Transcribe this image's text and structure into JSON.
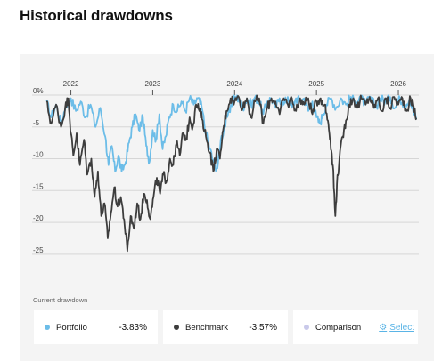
{
  "page": {
    "title": "Historical drawdowns"
  },
  "colors": {
    "portfolio": "#6cbde8",
    "benchmark": "#3d3d3d",
    "comparison": "#c9c9ea",
    "link": "#5ab4e6"
  },
  "chart_data": {
    "type": "line",
    "x_ticks": [
      {
        "label": "2022",
        "x": 2022.0
      },
      {
        "label": "2023",
        "x": 2023.0
      },
      {
        "label": "2024",
        "x": 2024.0
      },
      {
        "label": "2025",
        "x": 2025.0
      },
      {
        "label": "2026",
        "x": 2026.0
      }
    ],
    "y_ticks": [
      {
        "label": "0%",
        "y": 0
      },
      {
        "label": "-5",
        "y": -5
      },
      {
        "label": "-10",
        "y": -10
      },
      {
        "label": "-15",
        "y": -15
      },
      {
        "label": "-20",
        "y": -20
      },
      {
        "label": "-25",
        "y": -25
      }
    ],
    "xlim": [
      2021.7,
      2026.25
    ],
    "ylim": [
      -26,
      0
    ],
    "grid": true,
    "series": [
      {
        "name": "Portfolio",
        "color": "#6cbde8",
        "points": [
          [
            2021.7,
            -1.0
          ],
          [
            2021.76,
            -3.5
          ],
          [
            2021.82,
            -1.5
          ],
          [
            2021.88,
            -4.5
          ],
          [
            2021.94,
            -1.5
          ],
          [
            2022.0,
            -0.5
          ],
          [
            2022.06,
            -2.5
          ],
          [
            2022.12,
            -1.0
          ],
          [
            2022.18,
            -3.5
          ],
          [
            2022.24,
            -1.5
          ],
          [
            2022.3,
            -5.0
          ],
          [
            2022.36,
            -2.0
          ],
          [
            2022.42,
            -6.5
          ],
          [
            2022.46,
            -11.0
          ],
          [
            2022.5,
            -8.0
          ],
          [
            2022.54,
            -12.0
          ],
          [
            2022.58,
            -9.5
          ],
          [
            2022.62,
            -12.0
          ],
          [
            2022.67,
            -10.5
          ],
          [
            2022.71,
            -7.5
          ],
          [
            2022.75,
            -5.0
          ],
          [
            2022.79,
            -3.0
          ],
          [
            2022.83,
            -5.5
          ],
          [
            2022.88,
            -3.5
          ],
          [
            2022.92,
            -8.0
          ],
          [
            2022.96,
            -10.5
          ],
          [
            2023.0,
            -5.5
          ],
          [
            2023.04,
            -7.0
          ],
          [
            2023.08,
            -3.0
          ],
          [
            2023.12,
            -8.5
          ],
          [
            2023.16,
            -6.5
          ],
          [
            2023.2,
            -3.5
          ],
          [
            2023.25,
            -1.5
          ],
          [
            2023.3,
            -2.5
          ],
          [
            2023.35,
            -1.0
          ],
          [
            2023.4,
            -2.5
          ],
          [
            2023.45,
            -0.5
          ],
          [
            2023.5,
            -1.5
          ],
          [
            2023.55,
            -0.5
          ],
          [
            2023.6,
            -2.0
          ],
          [
            2023.65,
            -6.0
          ],
          [
            2023.7,
            -8.5
          ],
          [
            2023.74,
            -10.5
          ],
          [
            2023.79,
            -11.5
          ],
          [
            2023.83,
            -7.0
          ],
          [
            2023.88,
            -5.0
          ],
          [
            2023.92,
            -3.0
          ],
          [
            2023.96,
            -1.5
          ],
          [
            2024.0,
            -0.3
          ],
          [
            2024.05,
            -0.5
          ],
          [
            2024.1,
            -2.0
          ],
          [
            2024.15,
            -0.5
          ],
          [
            2024.2,
            -1.5
          ],
          [
            2024.25,
            -0.3
          ],
          [
            2024.3,
            -1.0
          ],
          [
            2024.35,
            -3.0
          ],
          [
            2024.4,
            -1.0
          ],
          [
            2024.45,
            -0.5
          ],
          [
            2024.5,
            -2.0
          ],
          [
            2024.55,
            -0.5
          ],
          [
            2024.6,
            -1.5
          ],
          [
            2024.65,
            -0.3
          ],
          [
            2024.7,
            -2.0
          ],
          [
            2024.75,
            -0.5
          ],
          [
            2024.8,
            -1.0
          ],
          [
            2024.85,
            -0.5
          ],
          [
            2024.9,
            -2.5
          ],
          [
            2024.95,
            -1.0
          ],
          [
            2025.0,
            -3.5
          ],
          [
            2025.04,
            -4.5
          ],
          [
            2025.08,
            -3.0
          ],
          [
            2025.12,
            -1.5
          ],
          [
            2025.18,
            -0.5
          ],
          [
            2025.24,
            -2.0
          ],
          [
            2025.3,
            -0.5
          ],
          [
            2025.36,
            -1.5
          ],
          [
            2025.42,
            -0.3
          ],
          [
            2025.48,
            -1.0
          ],
          [
            2025.54,
            -0.3
          ],
          [
            2025.6,
            -1.5
          ],
          [
            2025.66,
            -0.3
          ],
          [
            2025.72,
            -2.0
          ],
          [
            2025.78,
            -0.5
          ],
          [
            2025.84,
            -1.0
          ],
          [
            2025.9,
            -0.3
          ],
          [
            2025.96,
            -2.0
          ],
          [
            2026.02,
            -0.5
          ],
          [
            2026.08,
            -1.5
          ],
          [
            2026.14,
            -0.5
          ],
          [
            2026.18,
            -2.5
          ],
          [
            2026.22,
            -3.83
          ]
        ]
      },
      {
        "name": "Benchmark",
        "color": "#3d3d3d",
        "points": [
          [
            2021.7,
            -1.0
          ],
          [
            2021.76,
            -4.5
          ],
          [
            2021.82,
            -1.5
          ],
          [
            2021.88,
            -5.0
          ],
          [
            2021.93,
            -2.0
          ],
          [
            2021.97,
            -0.5
          ],
          [
            2022.0,
            -6.0
          ],
          [
            2022.03,
            -9.5
          ],
          [
            2022.07,
            -6.0
          ],
          [
            2022.11,
            -11.0
          ],
          [
            2022.16,
            -7.0
          ],
          [
            2022.2,
            -12.5
          ],
          [
            2022.25,
            -10.0
          ],
          [
            2022.29,
            -16.0
          ],
          [
            2022.33,
            -12.0
          ],
          [
            2022.37,
            -19.0
          ],
          [
            2022.41,
            -17.0
          ],
          [
            2022.45,
            -22.5
          ],
          [
            2022.49,
            -18.5
          ],
          [
            2022.53,
            -14.5
          ],
          [
            2022.57,
            -17.5
          ],
          [
            2022.61,
            -16.0
          ],
          [
            2022.65,
            -19.5
          ],
          [
            2022.69,
            -24.5
          ],
          [
            2022.73,
            -19.0
          ],
          [
            2022.77,
            -21.0
          ],
          [
            2022.81,
            -17.0
          ],
          [
            2022.85,
            -19.5
          ],
          [
            2022.89,
            -15.5
          ],
          [
            2022.93,
            -16.5
          ],
          [
            2022.97,
            -19.5
          ],
          [
            2023.01,
            -16.0
          ],
          [
            2023.05,
            -13.0
          ],
          [
            2023.09,
            -15.5
          ],
          [
            2023.13,
            -12.5
          ],
          [
            2023.17,
            -13.5
          ],
          [
            2023.21,
            -10.0
          ],
          [
            2023.25,
            -11.0
          ],
          [
            2023.29,
            -7.5
          ],
          [
            2023.33,
            -9.5
          ],
          [
            2023.37,
            -6.0
          ],
          [
            2023.41,
            -7.0
          ],
          [
            2023.45,
            -3.5
          ],
          [
            2023.49,
            -5.0
          ],
          [
            2023.53,
            -1.5
          ],
          [
            2023.57,
            -2.5
          ],
          [
            2023.61,
            -4.0
          ],
          [
            2023.65,
            -6.5
          ],
          [
            2023.7,
            -9.0
          ],
          [
            2023.74,
            -12.0
          ],
          [
            2023.78,
            -8.5
          ],
          [
            2023.82,
            -10.0
          ],
          [
            2023.86,
            -5.5
          ],
          [
            2023.9,
            -2.5
          ],
          [
            2023.95,
            -0.5
          ],
          [
            2024.0,
            -1.0
          ],
          [
            2024.05,
            -0.3
          ],
          [
            2024.1,
            -2.0
          ],
          [
            2024.15,
            -0.5
          ],
          [
            2024.2,
            -3.5
          ],
          [
            2024.25,
            -1.0
          ],
          [
            2024.3,
            -0.5
          ],
          [
            2024.35,
            -4.5
          ],
          [
            2024.4,
            -2.0
          ],
          [
            2024.45,
            -0.5
          ],
          [
            2024.5,
            -1.0
          ],
          [
            2024.55,
            -3.0
          ],
          [
            2024.6,
            -0.5
          ],
          [
            2024.65,
            -1.5
          ],
          [
            2024.7,
            -0.5
          ],
          [
            2024.75,
            -2.5
          ],
          [
            2024.8,
            -0.5
          ],
          [
            2024.85,
            -1.5
          ],
          [
            2024.9,
            -0.5
          ],
          [
            2024.95,
            -3.0
          ],
          [
            2025.0,
            -1.0
          ],
          [
            2025.05,
            -0.5
          ],
          [
            2025.1,
            -1.5
          ],
          [
            2025.14,
            -4.0
          ],
          [
            2025.17,
            -7.0
          ],
          [
            2025.2,
            -11.0
          ],
          [
            2025.23,
            -19.0
          ],
          [
            2025.25,
            -14.0
          ],
          [
            2025.28,
            -10.0
          ],
          [
            2025.32,
            -6.5
          ],
          [
            2025.36,
            -4.0
          ],
          [
            2025.4,
            -1.5
          ],
          [
            2025.45,
            -0.5
          ],
          [
            2025.5,
            -2.0
          ],
          [
            2025.55,
            -0.5
          ],
          [
            2025.6,
            -1.5
          ],
          [
            2025.65,
            -0.3
          ],
          [
            2025.7,
            -2.0
          ],
          [
            2025.75,
            -0.5
          ],
          [
            2025.8,
            -2.5
          ],
          [
            2025.85,
            -0.5
          ],
          [
            2025.9,
            -2.0
          ],
          [
            2025.95,
            -0.3
          ],
          [
            2026.0,
            -1.5
          ],
          [
            2026.05,
            -0.5
          ],
          [
            2026.1,
            -2.5
          ],
          [
            2026.15,
            -0.5
          ],
          [
            2026.19,
            -2.0
          ],
          [
            2026.22,
            -3.57
          ]
        ]
      }
    ]
  },
  "footer": {
    "label": "Current drawdown",
    "cards": [
      {
        "name": "Portfolio",
        "value": "-3.83%"
      },
      {
        "name": "Benchmark",
        "value": "-3.57%"
      },
      {
        "name": "Comparison",
        "link": "Select"
      }
    ]
  }
}
